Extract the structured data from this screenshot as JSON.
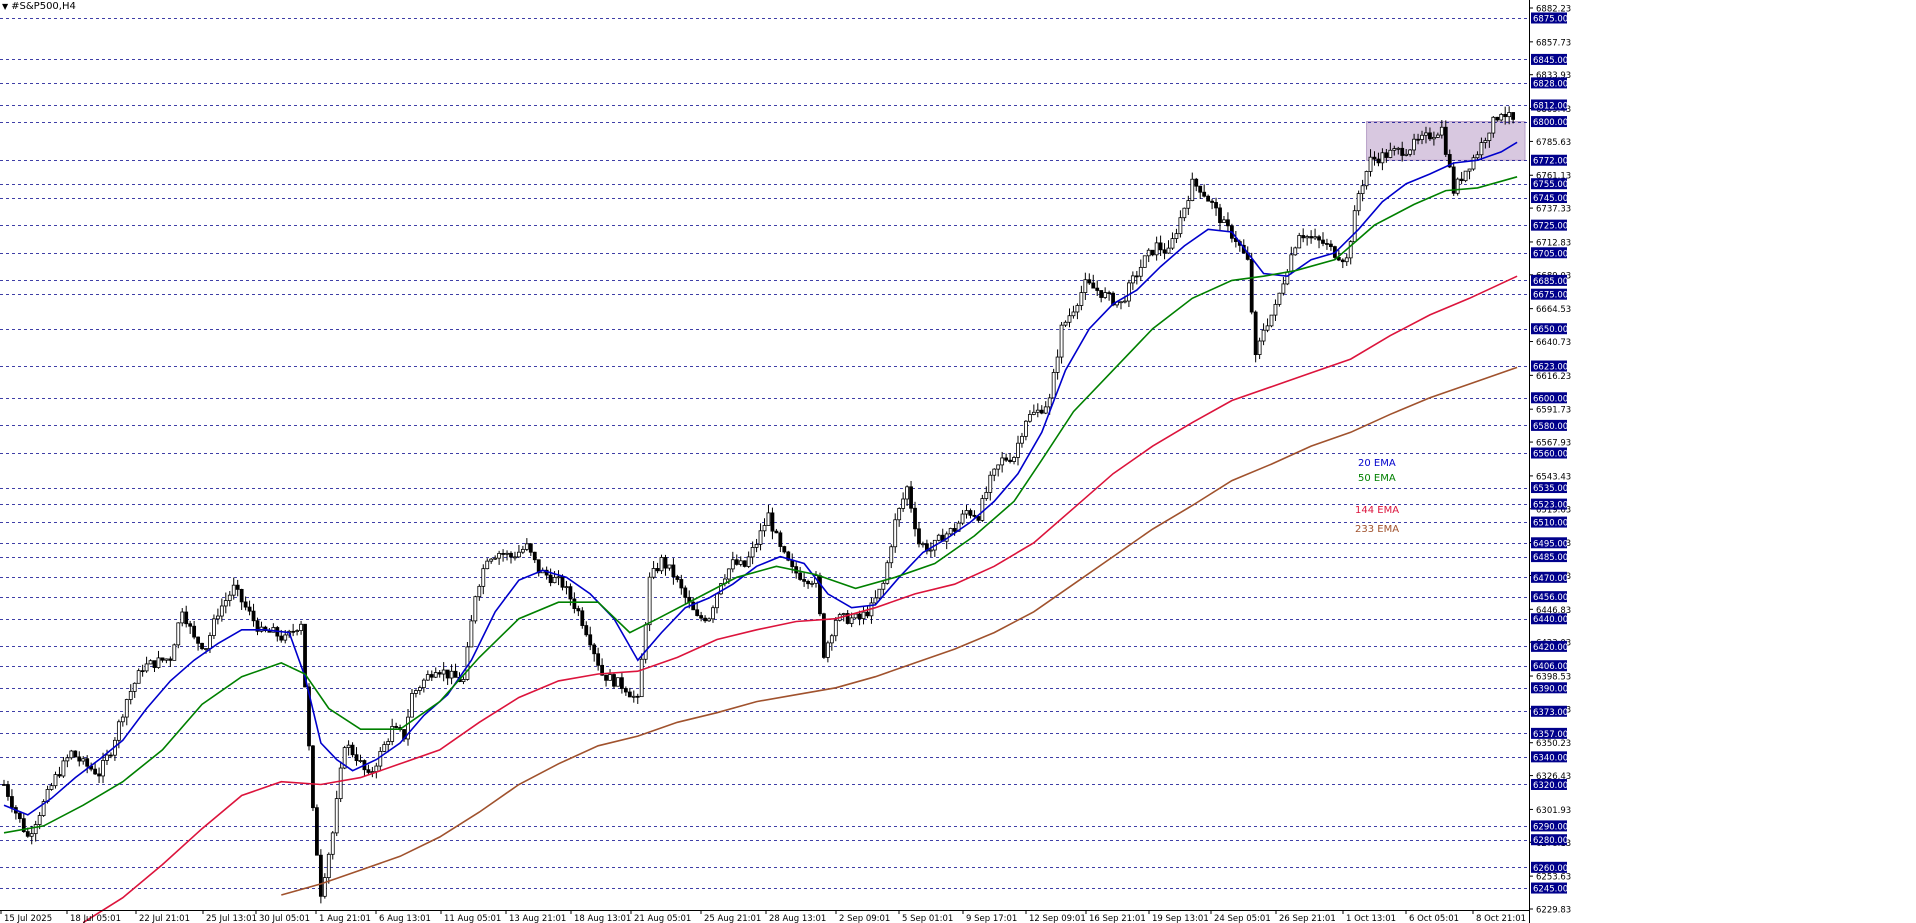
{
  "window": {
    "symbol_title": "#S&P500,H4",
    "menu_icon": "triangle-down-icon"
  },
  "chart_data": {
    "type": "candlestick",
    "title": "#S&P500,H4",
    "ylim": [
      6229.83,
      6882.23
    ],
    "grid": false,
    "y_ticks": [
      6882.23,
      6857.73,
      6833.93,
      6809.43,
      6785.63,
      6761.13,
      6737.33,
      6712.83,
      6689.03,
      6664.53,
      6640.73,
      6616.23,
      6591.73,
      6567.93,
      6543.43,
      6519.63,
      6495.13,
      6471.33,
      6446.83,
      6423.03,
      6398.53,
      6374.73,
      6350.23,
      6326.43,
      6301.93,
      6278.13,
      6253.63,
      6229.83
    ],
    "levels": [
      6875.0,
      6845.0,
      6828.0,
      6812.0,
      6800.0,
      6772.0,
      6755.0,
      6745.0,
      6725.0,
      6705.0,
      6685.0,
      6675.0,
      6650.0,
      6623.0,
      6600.0,
      6580.0,
      6560.0,
      6535.0,
      6523.0,
      6510.0,
      6495.0,
      6485.0,
      6470.0,
      6456.0,
      6440.0,
      6420.0,
      6406.0,
      6390.0,
      6373.0,
      6357.0,
      6340.0,
      6320.0,
      6290.0,
      6280.0,
      6260.0,
      6245.0
    ],
    "level_labels": [
      "6875.00",
      "6845.00",
      "6828.00",
      "6812.00",
      "6800.00",
      "6772.00",
      "6755.00",
      "6745.00",
      "6725.00",
      "6705.00",
      "6685.00",
      "6675.00",
      "6650.00",
      "6623.00",
      "6600.00",
      "6580.00",
      "6560.00",
      "6535.00",
      "6523.00",
      "6510.00",
      "6495.00",
      "6485.00",
      "6470.00",
      "6456.00",
      "6440.00",
      "6420.00",
      "6406.00",
      "6390.00",
      "6373.00",
      "6357.00",
      "6340.00",
      "6320.00",
      "6290.00",
      "6280.00",
      "6260.00",
      "6245.00"
    ],
    "tick_labels": [
      "6882.23",
      "6857.73",
      "6833.93",
      "6809.43",
      "6785.63",
      "6761.13",
      "6737.33",
      "6712.83",
      "6689.03",
      "6664.53",
      "6640.73",
      "6616.23",
      "6591.73",
      "6567.93",
      "6543.43",
      "6519.63",
      "6495.13",
      "6471.33",
      "6446.83",
      "6423.03",
      "6398.53",
      "6374.73",
      "6350.23",
      "6326.43",
      "6301.93",
      "6278.13",
      "6253.63",
      "6229.83"
    ],
    "x_labels": [
      "15 Jul 2025",
      "18 Jul 05:01",
      "22 Jul 21:01",
      "25 Jul 13:01",
      "30 Jul 05:01",
      "1 Aug 21:01",
      "6 Aug 13:01",
      "11 Aug 05:01",
      "13 Aug 21:01",
      "18 Aug 13:01",
      "21 Aug 05:01",
      "25 Aug 21:01",
      "28 Aug 13:01",
      "2 Sep 09:01",
      "5 Sep 01:01",
      "9 Sep 17:01",
      "12 Sep 09:01",
      "16 Sep 21:01",
      "19 Sep 13:01",
      "24 Sep 05:01",
      "26 Sep 21:01",
      "1 Oct 13:01",
      "6 Oct 05:01",
      "8 Oct 21:01"
    ],
    "close_path": [
      [
        0,
        6320
      ],
      [
        3,
        6300
      ],
      [
        6,
        6282
      ],
      [
        9,
        6300
      ],
      [
        13,
        6325
      ],
      [
        17,
        6343
      ],
      [
        20,
        6335
      ],
      [
        24,
        6328
      ],
      [
        27,
        6345
      ],
      [
        31,
        6382
      ],
      [
        35,
        6405
      ],
      [
        38,
        6408
      ],
      [
        42,
        6412
      ],
      [
        45,
        6448
      ],
      [
        48,
        6425
      ],
      [
        51,
        6420
      ],
      [
        54,
        6445
      ],
      [
        58,
        6462
      ],
      [
        61,
        6448
      ],
      [
        65,
        6430
      ],
      [
        68,
        6430
      ],
      [
        71,
        6425
      ],
      [
        75,
        6438
      ],
      [
        78,
        6300
      ],
      [
        80,
        6242
      ],
      [
        83,
        6285
      ],
      [
        86,
        6350
      ],
      [
        89,
        6340
      ],
      [
        92,
        6325
      ],
      [
        95,
        6342
      ],
      [
        98,
        6360
      ],
      [
        101,
        6355
      ],
      [
        103,
        6385
      ],
      [
        106,
        6395
      ],
      [
        109,
        6405
      ],
      [
        113,
        6398
      ],
      [
        116,
        6395
      ],
      [
        119,
        6458
      ],
      [
        122,
        6485
      ],
      [
        125,
        6488
      ],
      [
        128,
        6485
      ],
      [
        132,
        6492
      ],
      [
        135,
        6475
      ],
      [
        138,
        6470
      ],
      [
        141,
        6465
      ],
      [
        145,
        6445
      ],
      [
        148,
        6425
      ],
      [
        151,
        6400
      ],
      [
        154,
        6395
      ],
      [
        157,
        6390
      ],
      [
        160,
        6380
      ],
      [
        163,
        6468
      ],
      [
        166,
        6482
      ],
      [
        169,
        6472
      ],
      [
        172,
        6455
      ],
      [
        175,
        6440
      ],
      [
        178,
        6442
      ],
      [
        181,
        6468
      ],
      [
        184,
        6480
      ],
      [
        187,
        6478
      ],
      [
        190,
        6495
      ],
      [
        193,
        6515
      ],
      [
        196,
        6490
      ],
      [
        199,
        6475
      ],
      [
        202,
        6470
      ],
      [
        205,
        6468
      ],
      [
        207,
        6415
      ],
      [
        210,
        6440
      ],
      [
        213,
        6440
      ],
      [
        216,
        6440
      ],
      [
        219,
        6448
      ],
      [
        222,
        6465
      ],
      [
        225,
        6510
      ],
      [
        228,
        6535
      ],
      [
        231,
        6495
      ],
      [
        234,
        6490
      ],
      [
        237,
        6500
      ],
      [
        240,
        6505
      ],
      [
        243,
        6518
      ],
      [
        246,
        6515
      ],
      [
        249,
        6540
      ],
      [
        252,
        6555
      ],
      [
        255,
        6558
      ],
      [
        258,
        6585
      ],
      [
        261,
        6590
      ],
      [
        264,
        6598
      ],
      [
        267,
        6650
      ],
      [
        270,
        6665
      ],
      [
        273,
        6682
      ],
      [
        276,
        6678
      ],
      [
        279,
        6672
      ],
      [
        282,
        6668
      ],
      [
        285,
        6685
      ],
      [
        288,
        6700
      ],
      [
        291,
        6710
      ],
      [
        294,
        6705
      ],
      [
        297,
        6730
      ],
      [
        300,
        6755
      ],
      [
        302,
        6752
      ],
      [
        305,
        6740
      ],
      [
        308,
        6725
      ],
      [
        311,
        6715
      ],
      [
        314,
        6698
      ],
      [
        316,
        6628
      ],
      [
        318,
        6650
      ],
      [
        321,
        6665
      ],
      [
        324,
        6695
      ],
      [
        327,
        6720
      ],
      [
        330,
        6715
      ],
      [
        333,
        6712
      ],
      [
        336,
        6705
      ],
      [
        339,
        6700
      ],
      [
        342,
        6748
      ],
      [
        345,
        6772
      ],
      [
        348,
        6775
      ],
      [
        351,
        6778
      ],
      [
        354,
        6780
      ],
      [
        357,
        6785
      ],
      [
        360,
        6790
      ],
      [
        363,
        6795
      ],
      [
        366,
        6750
      ],
      [
        369,
        6765
      ],
      [
        372,
        6778
      ],
      [
        375,
        6795
      ],
      [
        378,
        6808
      ],
      [
        381,
        6800
      ]
    ],
    "series": [
      {
        "name": "20 EMA",
        "color": "#0000cc",
        "points": [
          [
            0,
            6305
          ],
          [
            6,
            6298
          ],
          [
            12,
            6310
          ],
          [
            18,
            6325
          ],
          [
            24,
            6338
          ],
          [
            30,
            6352
          ],
          [
            36,
            6375
          ],
          [
            42,
            6395
          ],
          [
            48,
            6410
          ],
          [
            54,
            6422
          ],
          [
            60,
            6432
          ],
          [
            66,
            6432
          ],
          [
            72,
            6430
          ],
          [
            76,
            6398
          ],
          [
            80,
            6350
          ],
          [
            84,
            6338
          ],
          [
            88,
            6330
          ],
          [
            94,
            6338
          ],
          [
            100,
            6350
          ],
          [
            106,
            6370
          ],
          [
            112,
            6385
          ],
          [
            118,
            6410
          ],
          [
            124,
            6445
          ],
          [
            130,
            6468
          ],
          [
            136,
            6475
          ],
          [
            142,
            6470
          ],
          [
            148,
            6458
          ],
          [
            154,
            6440
          ],
          [
            160,
            6410
          ],
          [
            166,
            6430
          ],
          [
            172,
            6448
          ],
          [
            178,
            6455
          ],
          [
            184,
            6465
          ],
          [
            190,
            6478
          ],
          [
            196,
            6485
          ],
          [
            202,
            6480
          ],
          [
            208,
            6458
          ],
          [
            214,
            6448
          ],
          [
            220,
            6450
          ],
          [
            226,
            6470
          ],
          [
            232,
            6488
          ],
          [
            238,
            6498
          ],
          [
            244,
            6510
          ],
          [
            250,
            6525
          ],
          [
            256,
            6545
          ],
          [
            262,
            6575
          ],
          [
            268,
            6620
          ],
          [
            274,
            6650
          ],
          [
            280,
            6668
          ],
          [
            286,
            6678
          ],
          [
            292,
            6695
          ],
          [
            298,
            6710
          ],
          [
            304,
            6722
          ],
          [
            310,
            6720
          ],
          [
            314,
            6705
          ],
          [
            318,
            6690
          ],
          [
            324,
            6688
          ],
          [
            330,
            6700
          ],
          [
            336,
            6705
          ],
          [
            342,
            6722
          ],
          [
            348,
            6742
          ],
          [
            354,
            6755
          ],
          [
            360,
            6762
          ],
          [
            366,
            6770
          ],
          [
            372,
            6772
          ],
          [
            378,
            6778
          ],
          [
            382,
            6785
          ]
        ]
      },
      {
        "name": "50 EMA",
        "color": "#008000",
        "points": [
          [
            0,
            6285
          ],
          [
            10,
            6290
          ],
          [
            20,
            6305
          ],
          [
            30,
            6322
          ],
          [
            40,
            6345
          ],
          [
            50,
            6378
          ],
          [
            60,
            6398
          ],
          [
            70,
            6408
          ],
          [
            76,
            6400
          ],
          [
            82,
            6375
          ],
          [
            90,
            6360
          ],
          [
            100,
            6360
          ],
          [
            110,
            6380
          ],
          [
            120,
            6412
          ],
          [
            130,
            6440
          ],
          [
            140,
            6452
          ],
          [
            150,
            6452
          ],
          [
            158,
            6430
          ],
          [
            165,
            6440
          ],
          [
            175,
            6455
          ],
          [
            185,
            6470
          ],
          [
            195,
            6478
          ],
          [
            205,
            6472
          ],
          [
            215,
            6462
          ],
          [
            225,
            6470
          ],
          [
            235,
            6480
          ],
          [
            245,
            6500
          ],
          [
            255,
            6525
          ],
          [
            262,
            6555
          ],
          [
            270,
            6590
          ],
          [
            280,
            6620
          ],
          [
            290,
            6650
          ],
          [
            300,
            6672
          ],
          [
            310,
            6685
          ],
          [
            318,
            6688
          ],
          [
            326,
            6692
          ],
          [
            336,
            6700
          ],
          [
            346,
            6725
          ],
          [
            356,
            6740
          ],
          [
            364,
            6750
          ],
          [
            372,
            6752
          ],
          [
            382,
            6760
          ]
        ]
      },
      {
        "name": "144 EMA",
        "color": "#dc143c",
        "points": [
          [
            20,
            6220
          ],
          [
            30,
            6238
          ],
          [
            40,
            6262
          ],
          [
            50,
            6288
          ],
          [
            60,
            6312
          ],
          [
            70,
            6322
          ],
          [
            80,
            6320
          ],
          [
            90,
            6325
          ],
          [
            100,
            6335
          ],
          [
            110,
            6345
          ],
          [
            120,
            6365
          ],
          [
            130,
            6383
          ],
          [
            140,
            6395
          ],
          [
            150,
            6400
          ],
          [
            160,
            6402
          ],
          [
            170,
            6412
          ],
          [
            180,
            6425
          ],
          [
            190,
            6432
          ],
          [
            200,
            6438
          ],
          [
            210,
            6440
          ],
          [
            220,
            6448
          ],
          [
            230,
            6458
          ],
          [
            240,
            6465
          ],
          [
            250,
            6478
          ],
          [
            260,
            6495
          ],
          [
            270,
            6520
          ],
          [
            280,
            6545
          ],
          [
            290,
            6565
          ],
          [
            300,
            6582
          ],
          [
            310,
            6598
          ],
          [
            320,
            6608
          ],
          [
            330,
            6618
          ],
          [
            340,
            6628
          ],
          [
            350,
            6645
          ],
          [
            360,
            6660
          ],
          [
            370,
            6672
          ],
          [
            382,
            6688
          ]
        ]
      },
      {
        "name": "233 EMA",
        "color": "#a0522d",
        "points": [
          [
            70,
            6240
          ],
          [
            80,
            6248
          ],
          [
            90,
            6258
          ],
          [
            100,
            6268
          ],
          [
            110,
            6282
          ],
          [
            120,
            6300
          ],
          [
            130,
            6320
          ],
          [
            140,
            6335
          ],
          [
            150,
            6348
          ],
          [
            160,
            6355
          ],
          [
            170,
            6365
          ],
          [
            180,
            6372
          ],
          [
            190,
            6380
          ],
          [
            200,
            6385
          ],
          [
            210,
            6390
          ],
          [
            220,
            6398
          ],
          [
            230,
            6408
          ],
          [
            240,
            6418
          ],
          [
            250,
            6430
          ],
          [
            260,
            6445
          ],
          [
            270,
            6465
          ],
          [
            280,
            6485
          ],
          [
            290,
            6505
          ],
          [
            300,
            6522
          ],
          [
            310,
            6540
          ],
          [
            320,
            6552
          ],
          [
            330,
            6565
          ],
          [
            340,
            6575
          ],
          [
            350,
            6588
          ],
          [
            360,
            6600
          ],
          [
            370,
            6610
          ],
          [
            382,
            6622
          ]
        ]
      }
    ],
    "zones": [
      {
        "y_from": 6772,
        "y_to": 6800,
        "x_from": 344,
        "x_to": 384,
        "color": "#d8c8e0"
      }
    ]
  },
  "legend": {
    "ema20": "20 EMA",
    "ema50": "50 EMA",
    "ema144": "144 EMA",
    "ema233": "233 EMA"
  },
  "colors": {
    "ema20": "#0000cc",
    "ema50": "#008000",
    "ema144": "#dc143c",
    "ema233": "#a0522d",
    "level_line": "#00008b",
    "axis_badge": "#00008b",
    "zone": "#d8c8e0"
  }
}
